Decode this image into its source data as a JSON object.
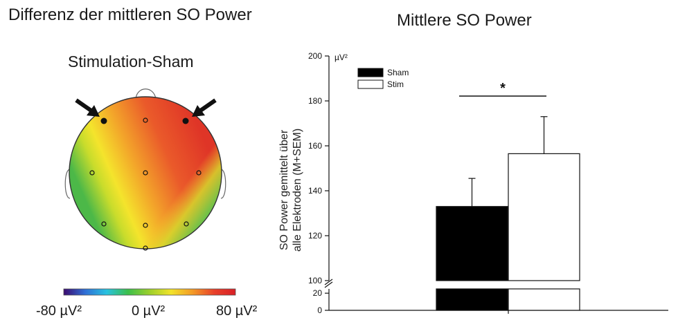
{
  "left_panel": {
    "title": "Differenz der mittleren SO Power",
    "topomap_title": "Stimulation-Sham",
    "colorbar": {
      "min_label": "-80 µV²",
      "mid_label": "0 µV²",
      "max_label": "80 µV²",
      "colors": [
        "#3b0a6e",
        "#2f6fd6",
        "#28c2e0",
        "#3cbf4a",
        "#9ccf2b",
        "#f2e32a",
        "#f39a26",
        "#e8412a",
        "#d81f26"
      ]
    },
    "highlighted_electrodes": 2,
    "electrodes_total": 10
  },
  "right_panel": {
    "title": "Mittlere SO Power",
    "significance_marker": "*"
  },
  "chart_data": {
    "type": "bar",
    "title": "Mittlere SO Power",
    "ylabel_line1": "SO Power gemittelt über",
    "ylabel_line2": "alle Elektroden (M+SEM)",
    "yunit": "µV²",
    "yaxis_break": true,
    "ylim_lower_segment": [
      0,
      25
    ],
    "ylim_upper_segment": [
      100,
      200
    ],
    "yticks_upper": [
      100,
      120,
      140,
      160,
      180,
      200
    ],
    "yticks_lower": [
      0,
      20
    ],
    "categories": [
      "Sham",
      "Stim"
    ],
    "series": [
      {
        "name": "Sham",
        "value": 133,
        "sem": 12.5,
        "fill": "#000000"
      },
      {
        "name": "Stim",
        "value": 156.5,
        "sem": 16.5,
        "fill": "#ffffff"
      }
    ],
    "legend": [
      "Sham",
      "Stim"
    ],
    "legend_position": "top-left",
    "significance": {
      "label": "*",
      "between": [
        "Sham",
        "Stim"
      ]
    }
  }
}
